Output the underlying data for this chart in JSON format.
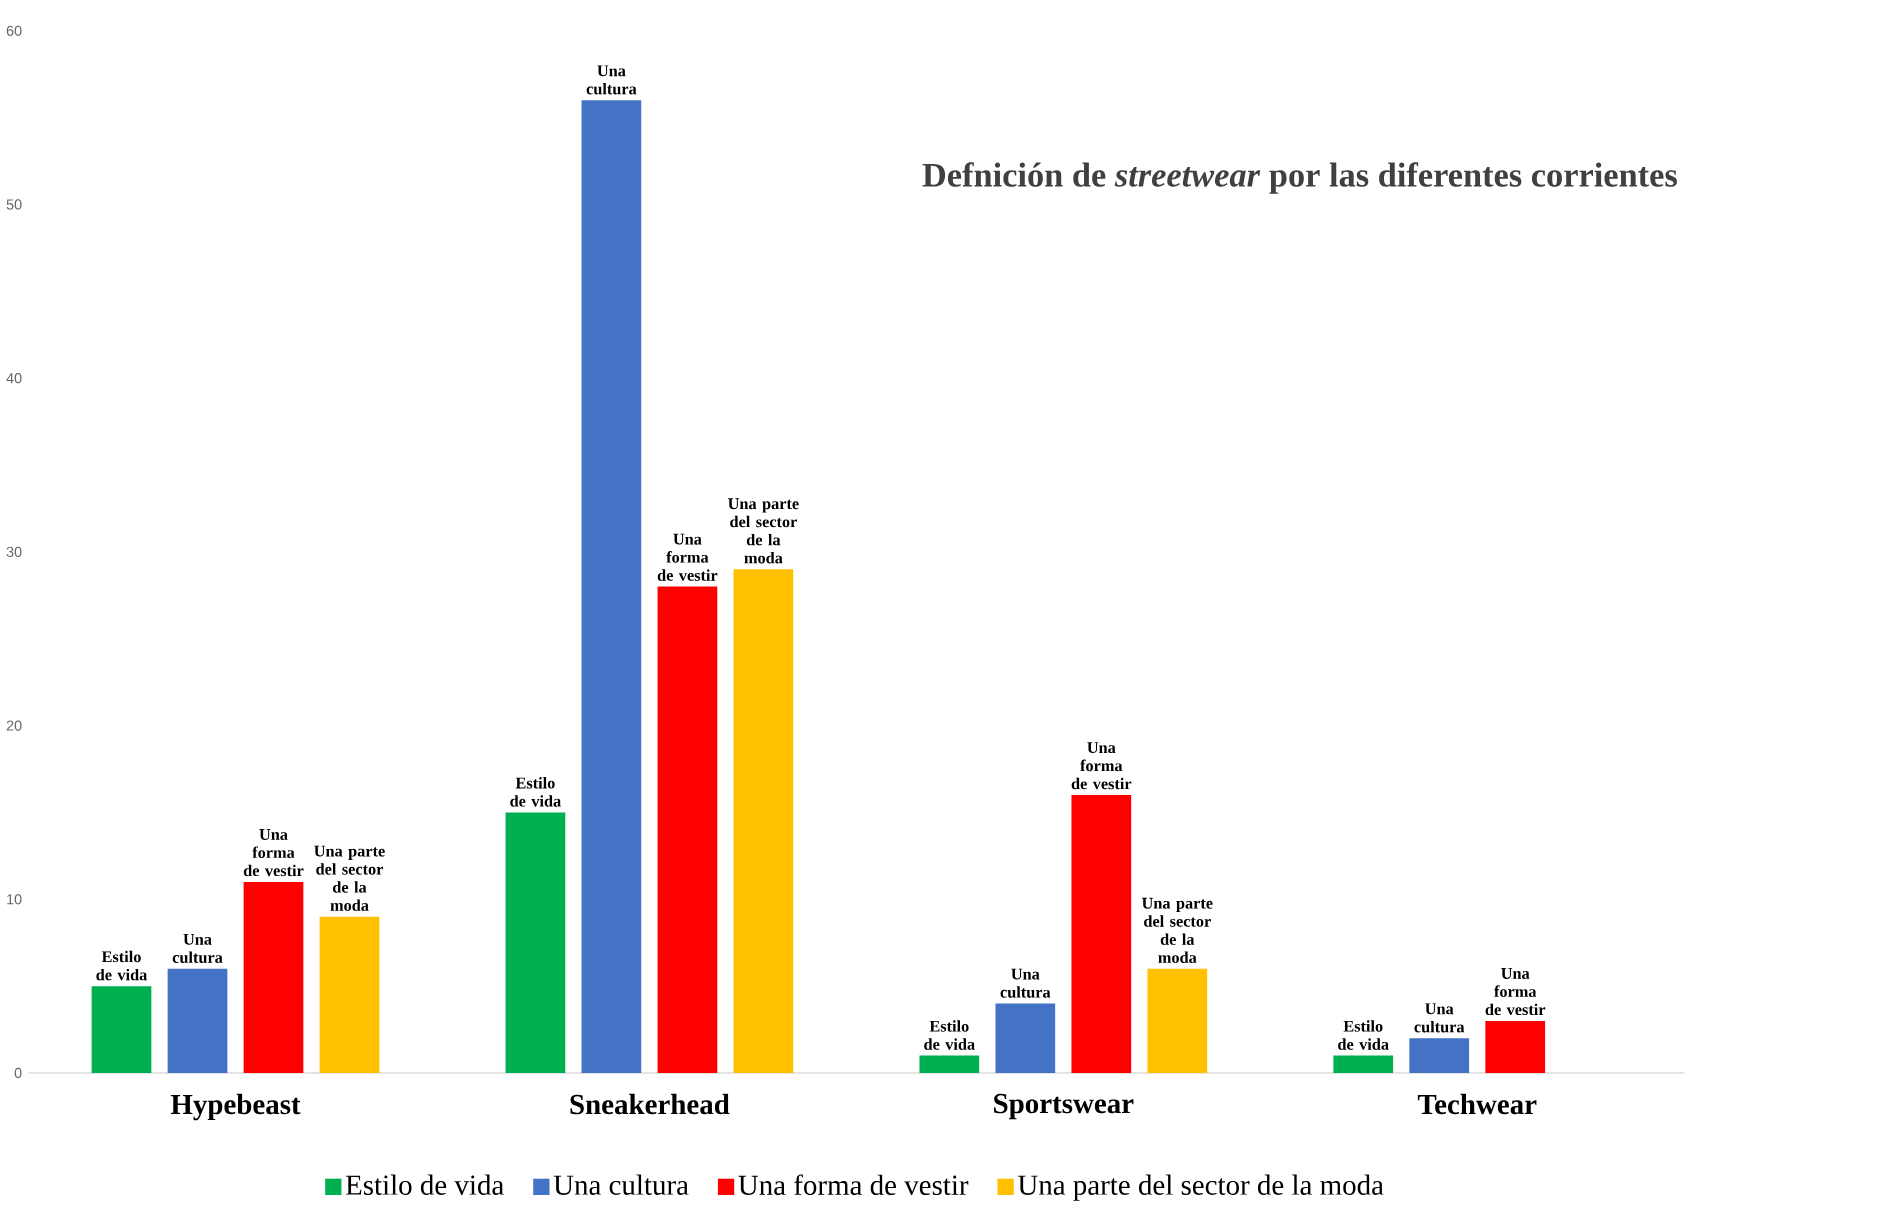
{
  "chart_data": {
    "type": "bar",
    "title": "Defnición de *streetwear* por las diferentes corrientes",
    "categories": [
      "Hypebeast",
      "Sneakerhead",
      "Sportswear",
      "Techwear"
    ],
    "series": [
      {
        "name": "Estilo de vida",
        "color": "#00b050",
        "values": [
          5,
          15,
          1,
          1
        ],
        "value_labels": [
          "Estilo de vida",
          "Estilo de vida",
          "Estilo de vida",
          "Estilo de vida"
        ]
      },
      {
        "name": "Una cultura",
        "color": "#4472c4",
        "values": [
          6,
          56,
          4,
          2
        ],
        "value_labels": [
          "Una cultura",
          "Una cultura",
          "Una cultura",
          "Una cultura"
        ]
      },
      {
        "name": "Una forma de vestir",
        "color": "#ff0000",
        "values": [
          11,
          28,
          16,
          3
        ],
        "value_labels": [
          "Una forma de vestir",
          "Una forma de vestir",
          "Una forma de vestir",
          "Una forma de vestir"
        ]
      },
      {
        "name": "Una parte del sector de la moda",
        "color": "#ffc000",
        "values": [
          9,
          29,
          6,
          null
        ],
        "value_labels": [
          "Una parte del sector de la moda",
          "Una parte del sector de la moda",
          "Una parte del sector de la moda",
          null
        ]
      }
    ],
    "ylim": [
      0,
      60
    ],
    "yticks": [
      0,
      10,
      20,
      30,
      40,
      50,
      60
    ],
    "grid": false,
    "legend": "bottom"
  }
}
